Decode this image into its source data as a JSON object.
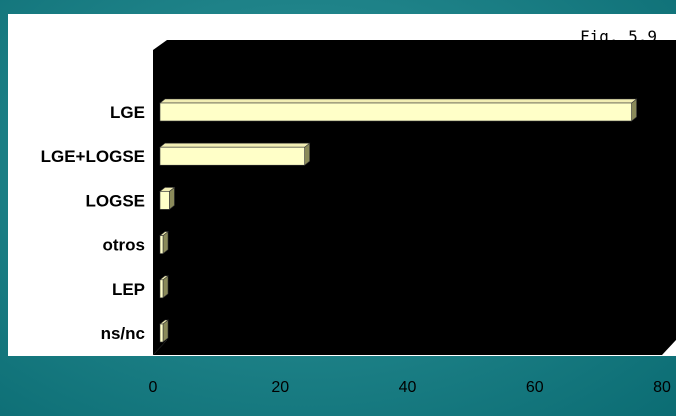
{
  "figure_label": "Fig. 5.9",
  "colors": {
    "background": "#1f8389",
    "plot_area": "#000000",
    "bar_front": "#ffffc8",
    "bar_top": "#f2eeb4",
    "bar_side": "#8a8a5a",
    "panel": "#ffffff"
  },
  "chart_data": {
    "type": "bar",
    "orientation": "horizontal",
    "style": "3d",
    "categories": [
      "LGE",
      "LGE+LOGSE",
      "LOGSE",
      "otros",
      "LEP",
      "ns/nc"
    ],
    "values": [
      75,
      23,
      1.5,
      0.3,
      0.3,
      0.3
    ],
    "xlim": [
      0,
      80
    ],
    "xticks": [
      "0",
      "20",
      "40",
      "60",
      "80"
    ],
    "grid": false,
    "legend": "none",
    "title": "",
    "xlabel": "",
    "ylabel": ""
  }
}
